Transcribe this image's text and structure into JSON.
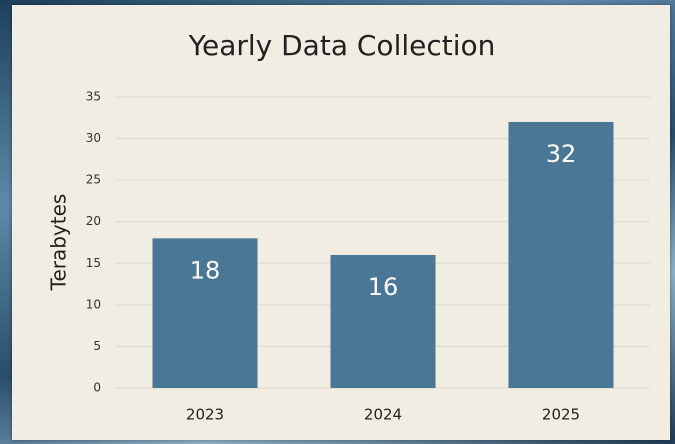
{
  "chart_data": {
    "type": "bar",
    "title": "Yearly Data Collection",
    "y_label": "Terabytes",
    "categories": [
      "2023",
      "2024",
      "2025"
    ],
    "values": [
      18,
      16,
      32
    ],
    "color": "#4a7796",
    "ylim": [
      0,
      35
    ],
    "yticks": [
      0,
      5,
      10,
      15,
      20,
      25,
      30,
      35
    ],
    "grid": true
  }
}
